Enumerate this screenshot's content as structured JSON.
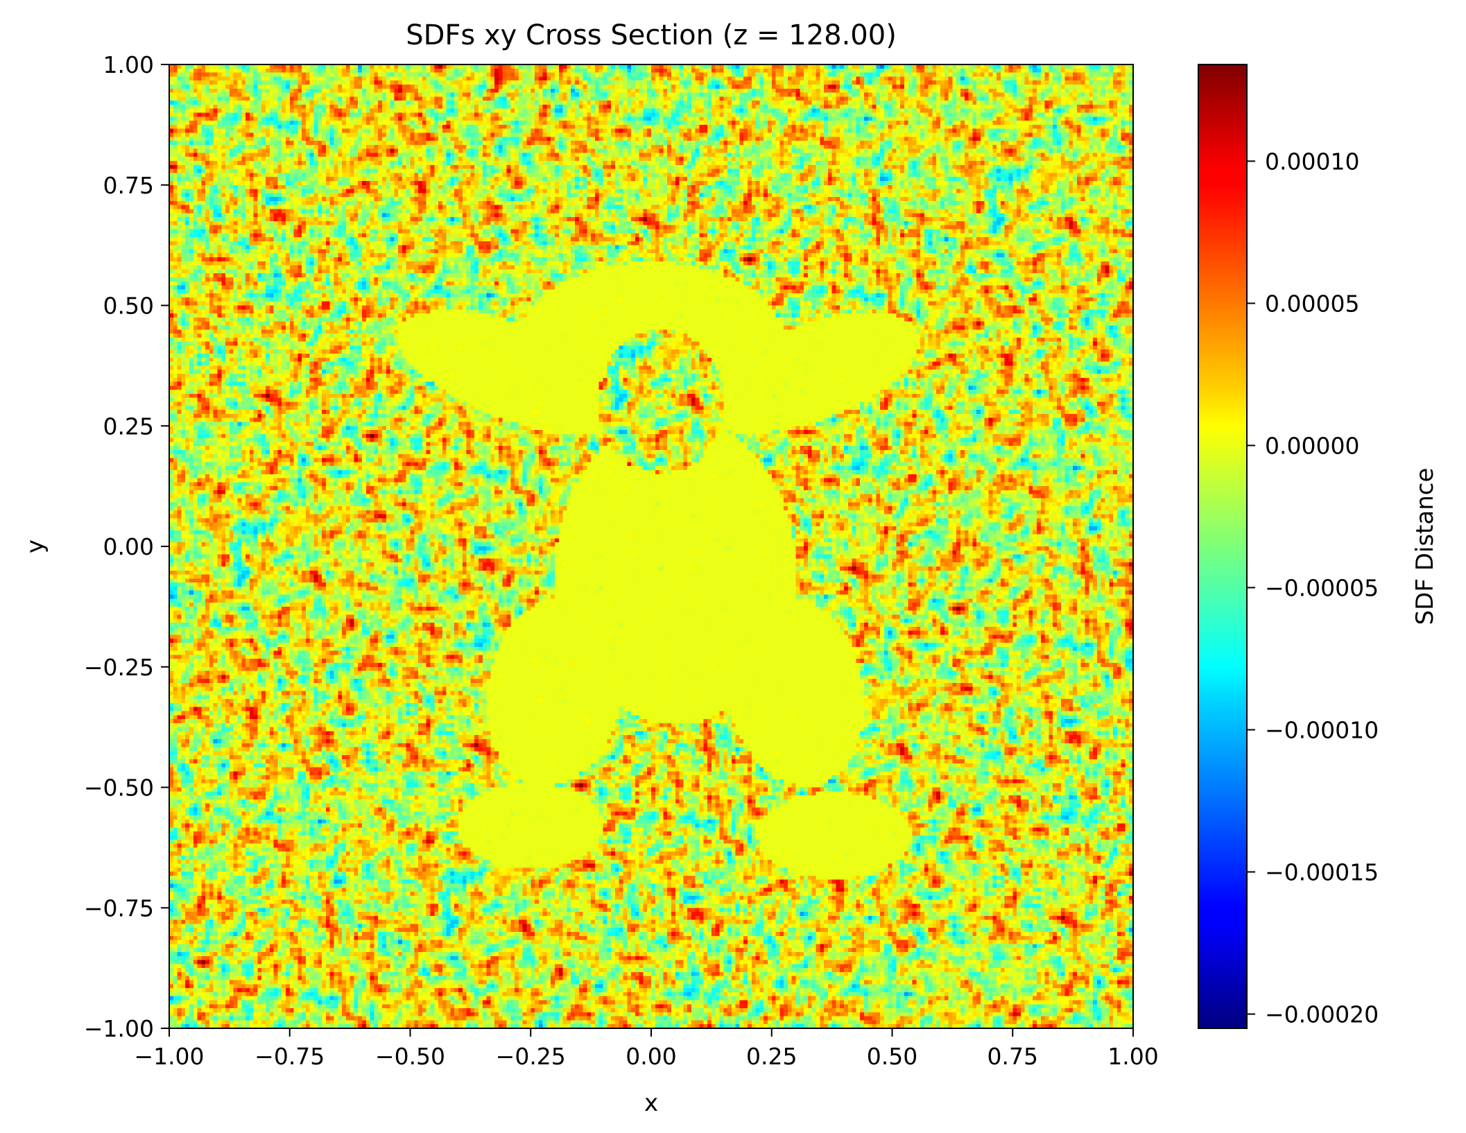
{
  "chart_data": {
    "type": "heatmap",
    "title": "SDFs xy Cross Section (z = 128.00)",
    "xlabel": "x",
    "ylabel": "y",
    "xlim": [
      -1.0,
      1.0
    ],
    "ylim": [
      -1.0,
      1.0
    ],
    "x_ticks": [
      -1.0,
      -0.75,
      -0.5,
      -0.25,
      0.0,
      0.25,
      0.5,
      0.75,
      1.0
    ],
    "x_tick_labels": [
      "−1.00",
      "−0.75",
      "−0.50",
      "−0.25",
      "0.00",
      "0.25",
      "0.50",
      "0.75",
      "1.00"
    ],
    "y_ticks": [
      -1.0,
      -0.75,
      -0.5,
      -0.25,
      0.0,
      0.25,
      0.5,
      0.75,
      1.0
    ],
    "y_tick_labels": [
      "−1.00",
      "−0.75",
      "−0.50",
      "−0.25",
      "0.00",
      "0.25",
      "0.50",
      "0.75",
      "1.00"
    ],
    "grid": false,
    "colormap": "jet",
    "colorbar": {
      "label": "SDF Distance",
      "vmin": -0.000205,
      "vmax": 0.000134,
      "ticks": [
        0.0001,
        5e-05,
        0.0,
        -5e-05,
        -0.0001,
        -0.00015,
        -0.0002
      ],
      "tick_labels": [
        "0.00010",
        "0.00005",
        "0.00000",
        "−0.00005",
        "−0.00010",
        "−0.00015",
        "−0.00020"
      ]
    },
    "shape_value": 0.0,
    "shape_color": "#ccff33"
  }
}
